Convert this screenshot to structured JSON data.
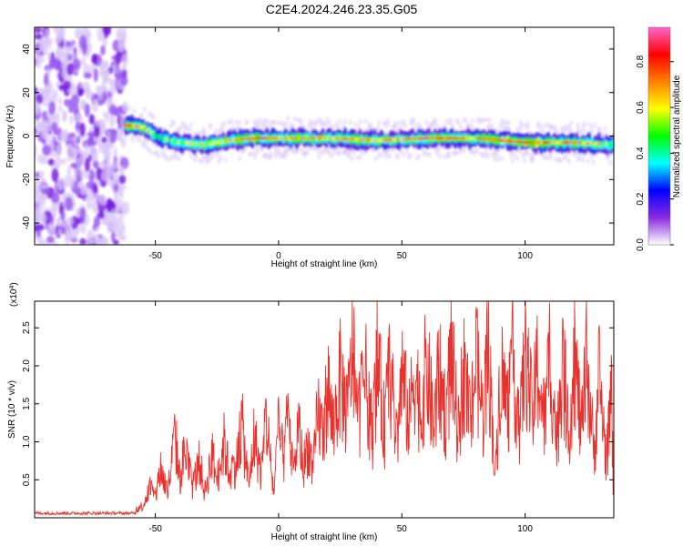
{
  "title": "C2E4.2024.246.23.35.G05",
  "colorbar": {
    "label": "Normalized spectral amplitude",
    "ticks": [
      "0.0",
      "0.2",
      "0.4",
      "0.6",
      "0.8"
    ],
    "range": [
      0,
      0.95
    ],
    "colors": [
      "#ffffff",
      "#8a2be2",
      "#0000ff",
      "#00ffff",
      "#00ff00",
      "#ffff00",
      "#ff8000",
      "#ff0000",
      "#ff66cc"
    ]
  },
  "chart_data": [
    {
      "type": "heatmap",
      "title": "",
      "xlabel": "Height of straight line (km)",
      "ylabel": "Frequency (Hz)",
      "xlim": [
        -99,
        136
      ],
      "ylim": [
        -50,
        50
      ],
      "xticks": [
        "-50",
        "0",
        "50",
        "100"
      ],
      "yticks": [
        "-40",
        "-20",
        "0",
        "20",
        "40"
      ],
      "ridge": {
        "x": [
          -62,
          -55,
          -48,
          -40,
          -30,
          -20,
          -10,
          0,
          10,
          20,
          40,
          60,
          80,
          100,
          120,
          136
        ],
        "freq": [
          5,
          4,
          -1,
          -3,
          -4,
          -2,
          -1,
          -1,
          -1,
          -1,
          -2,
          -1,
          -1,
          -3,
          -3,
          -4
        ],
        "amplitude": [
          0.8,
          0.7,
          0.5,
          0.6,
          0.7,
          0.75,
          0.85,
          0.7,
          0.8,
          0.8,
          0.75,
          0.8,
          0.8,
          0.85,
          0.8,
          0.6
        ]
      },
      "noise_region_x": [
        -99,
        -62
      ]
    },
    {
      "type": "line",
      "title": "",
      "xlabel": "Height of straight line (km)",
      "ylabel": "SNR (10 * v/v)",
      "y_multiplier": "(x10",
      "y_multiplier_exp": "4",
      "xlim": [
        -99,
        136
      ],
      "ylim": [
        0,
        2.85
      ],
      "xticks": [
        "-50",
        "0",
        "50",
        "100"
      ],
      "yticks": [
        "0.5",
        "1.0",
        "1.5",
        "2.0",
        "2.5"
      ],
      "color": "#e8322e",
      "series": [
        {
          "x": [
            -99,
            -90,
            -80,
            -70,
            -60,
            -55,
            -52,
            -50,
            -48,
            -45,
            -42,
            -40,
            -38,
            -35,
            -32,
            -30,
            -27,
            -25,
            -22,
            -20,
            -17,
            -15,
            -12,
            -10,
            -7,
            -5,
            -2,
            0,
            2,
            4,
            6,
            8,
            10,
            12,
            14,
            16,
            18,
            20,
            22,
            25,
            28,
            30,
            32,
            35,
            38,
            40,
            43,
            45,
            48,
            50,
            53,
            55,
            58,
            60,
            63,
            65,
            68,
            70,
            73,
            75,
            78,
            80,
            83,
            85,
            88,
            90,
            93,
            95,
            98,
            100,
            103,
            105,
            108,
            110,
            113,
            115,
            118,
            120,
            123,
            125,
            128,
            130,
            133,
            135,
            136
          ],
          "y": [
            0.05,
            0.06,
            0.05,
            0.06,
            0.06,
            0.2,
            0.5,
            0.3,
            0.8,
            0.4,
            1.3,
            0.6,
            1.1,
            0.5,
            0.9,
            0.4,
            1.0,
            0.6,
            1.2,
            0.7,
            0.9,
            1.5,
            0.5,
            1.3,
            0.7,
            1.6,
            0.4,
            1.4,
            0.9,
            1.7,
            0.6,
            1.5,
            0.8,
            1.2,
            0.7,
            1.7,
            1.3,
            2.1,
            1.4,
            2.2,
            1.6,
            2.8,
            1.5,
            2.3,
            1.3,
            2.5,
            1.4,
            2.4,
            1.2,
            2.3,
            1.5,
            2.4,
            1.6,
            2.5,
            1.4,
            2.3,
            1.6,
            2.6,
            1.3,
            2.4,
            1.5,
            2.5,
            1.6,
            2.8,
            0.6,
            2.4,
            1.7,
            2.5,
            1.4,
            2.7,
            1.6,
            2.4,
            1.5,
            2.6,
            1.2,
            2.5,
            1.4,
            2.6,
            1.3,
            2.5,
            1.0,
            2.3,
            0.9,
            2.0,
            0.1
          ]
        }
      ]
    }
  ]
}
